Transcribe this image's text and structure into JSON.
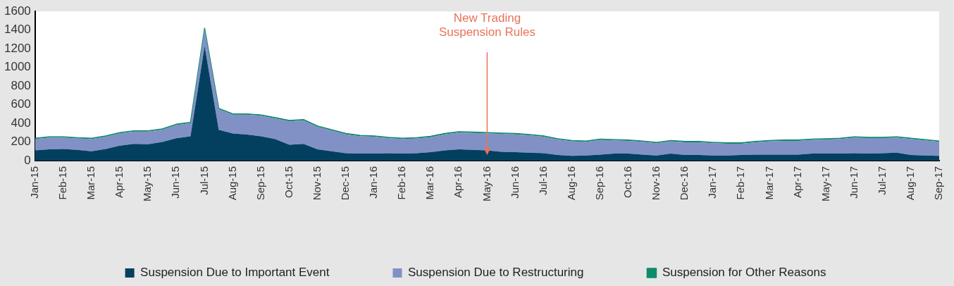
{
  "chart_data": {
    "type": "area",
    "stacked": true,
    "categories": [
      "Jan-15",
      null,
      "Feb-15",
      null,
      "Mar-15",
      null,
      "Apr-15",
      null,
      "May-15",
      null,
      "Jun-15",
      null,
      "Jul-15",
      null,
      "Aug-15",
      null,
      "Sep-15",
      null,
      "Oct-15",
      null,
      "Nov-15",
      null,
      "Dec-15",
      null,
      "Jan-16",
      null,
      "Feb-16",
      null,
      "Mar-16",
      null,
      "Apr-16",
      null,
      "May-16",
      null,
      "Jun-16",
      null,
      "Jul-16",
      null,
      "Aug-16",
      null,
      "Sep-16",
      null,
      "Oct-16",
      null,
      "Nov-16",
      null,
      "Dec-16",
      null,
      "Jan-17",
      null,
      "Feb-17",
      null,
      "Mar-17",
      null,
      "Apr-17",
      null,
      "May-17",
      null,
      "Jun-17",
      null,
      "Jul-17",
      null,
      "Aug-17",
      null,
      "Sep-17"
    ],
    "series": [
      {
        "name": "Suspension Due to Important Event",
        "color": "#03405f",
        "values": [
          110,
          120,
          125,
          115,
          100,
          125,
          160,
          180,
          175,
          200,
          240,
          260,
          1230,
          330,
          290,
          280,
          260,
          230,
          170,
          180,
          120,
          100,
          80,
          75,
          75,
          80,
          75,
          80,
          90,
          110,
          120,
          115,
          110,
          95,
          90,
          85,
          80,
          60,
          50,
          55,
          65,
          75,
          75,
          65,
          55,
          75,
          60,
          60,
          55,
          55,
          60,
          65,
          65,
          65,
          65,
          75,
          75,
          75,
          80,
          75,
          80,
          85,
          60,
          55,
          50
        ]
      },
      {
        "name": "Suspension Due to Restructuring",
        "color": "#8191c6",
        "values": [
          122,
          127,
          122,
          122,
          132,
          132,
          132,
          132,
          137,
          132,
          142,
          142,
          182,
          222,
          202,
          212,
          222,
          222,
          252,
          252,
          242,
          222,
          202,
          187,
          182,
          162,
          157,
          157,
          162,
          172,
          182,
          182,
          182,
          192,
          192,
          187,
          177,
          167,
          157,
          147,
          157,
          142,
          137,
          137,
          132,
          132,
          137,
          137,
          132,
          127,
          122,
          132,
          142,
          147,
          147,
          147,
          152,
          157,
          167,
          167,
          162,
          162,
          172,
          162,
          152
        ]
      },
      {
        "name": "Suspension for Other Reasons",
        "color": "#0e8b6a",
        "values": [
          8,
          8,
          8,
          8,
          8,
          8,
          8,
          8,
          8,
          8,
          8,
          8,
          8,
          8,
          8,
          8,
          8,
          8,
          8,
          8,
          8,
          8,
          8,
          8,
          8,
          8,
          8,
          8,
          8,
          8,
          8,
          8,
          8,
          8,
          8,
          8,
          8,
          8,
          8,
          8,
          8,
          8,
          8,
          8,
          8,
          8,
          8,
          8,
          8,
          8,
          8,
          8,
          8,
          8,
          8,
          8,
          8,
          8,
          8,
          8,
          8,
          8,
          8,
          8,
          8
        ]
      }
    ],
    "ylim": [
      0,
      1600
    ],
    "yticks": [
      0,
      200,
      400,
      600,
      800,
      1000,
      1200,
      1400,
      1600
    ],
    "grid": false,
    "legend": "bottom",
    "marker": "none",
    "annotations": [
      {
        "text": "New Trading\nSuspension Rules",
        "x": "May-16"
      }
    ]
  }
}
